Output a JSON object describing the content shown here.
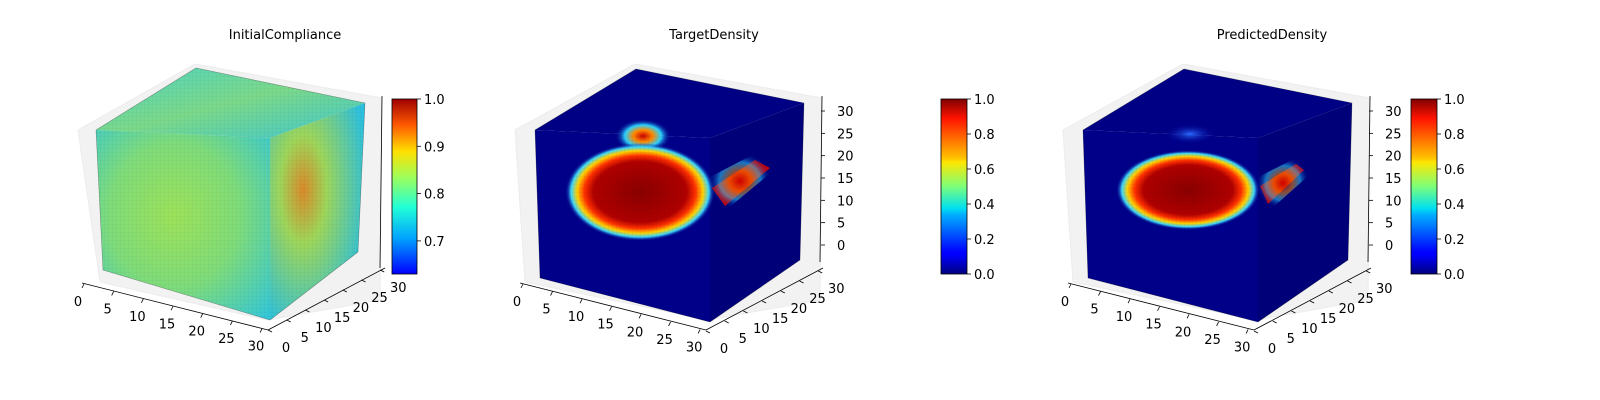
{
  "chart_data": [
    {
      "type": "heatmap",
      "subtype": "3d-voxel",
      "title": "InitialCompliance",
      "x_ticks": [
        0,
        5,
        10,
        15,
        20,
        25,
        30
      ],
      "y_ticks": [
        0,
        5,
        10,
        15,
        20,
        25,
        30
      ],
      "z_ticks": [],
      "colorbar": {
        "colormap": "jet",
        "min": 0.63,
        "max": 1.0,
        "ticks": [
          "0.7",
          "0.8",
          "0.9",
          "1.0"
        ],
        "tick_values": [
          0.7,
          0.8,
          0.9,
          1.0
        ]
      },
      "value_range": [
        0.63,
        1.0
      ]
    },
    {
      "type": "heatmap",
      "subtype": "3d-voxel",
      "title": "TargetDensity",
      "x_ticks": [
        0,
        5,
        10,
        15,
        20,
        25,
        30
      ],
      "y_ticks": [
        0,
        5,
        10,
        15,
        20,
        25,
        30
      ],
      "z_ticks": [
        0,
        5,
        10,
        15,
        20,
        25,
        30
      ],
      "colorbar": {
        "colormap": "jet",
        "min": 0.0,
        "max": 1.0,
        "ticks": [
          "0.0",
          "0.2",
          "0.4",
          "0.6",
          "0.8",
          "1.0"
        ],
        "tick_values": [
          0.0,
          0.2,
          0.4,
          0.6,
          0.8,
          1.0
        ]
      },
      "value_range": [
        0.0,
        1.0
      ]
    },
    {
      "type": "heatmap",
      "subtype": "3d-voxel",
      "title": "PredictedDensity",
      "x_ticks": [
        0,
        5,
        10,
        15,
        20,
        25,
        30
      ],
      "y_ticks": [
        0,
        5,
        10,
        15,
        20,
        25,
        30
      ],
      "z_ticks": [
        0,
        5,
        10,
        15,
        20,
        25,
        30
      ],
      "colorbar": {
        "colormap": "jet",
        "min": 0.0,
        "max": 1.0,
        "ticks": [
          "0.0",
          "0.2",
          "0.4",
          "0.6",
          "0.8",
          "1.0"
        ],
        "tick_values": [
          0.0,
          0.2,
          0.4,
          0.6,
          0.8,
          1.0
        ]
      },
      "value_range": [
        0.0,
        1.0
      ]
    }
  ]
}
